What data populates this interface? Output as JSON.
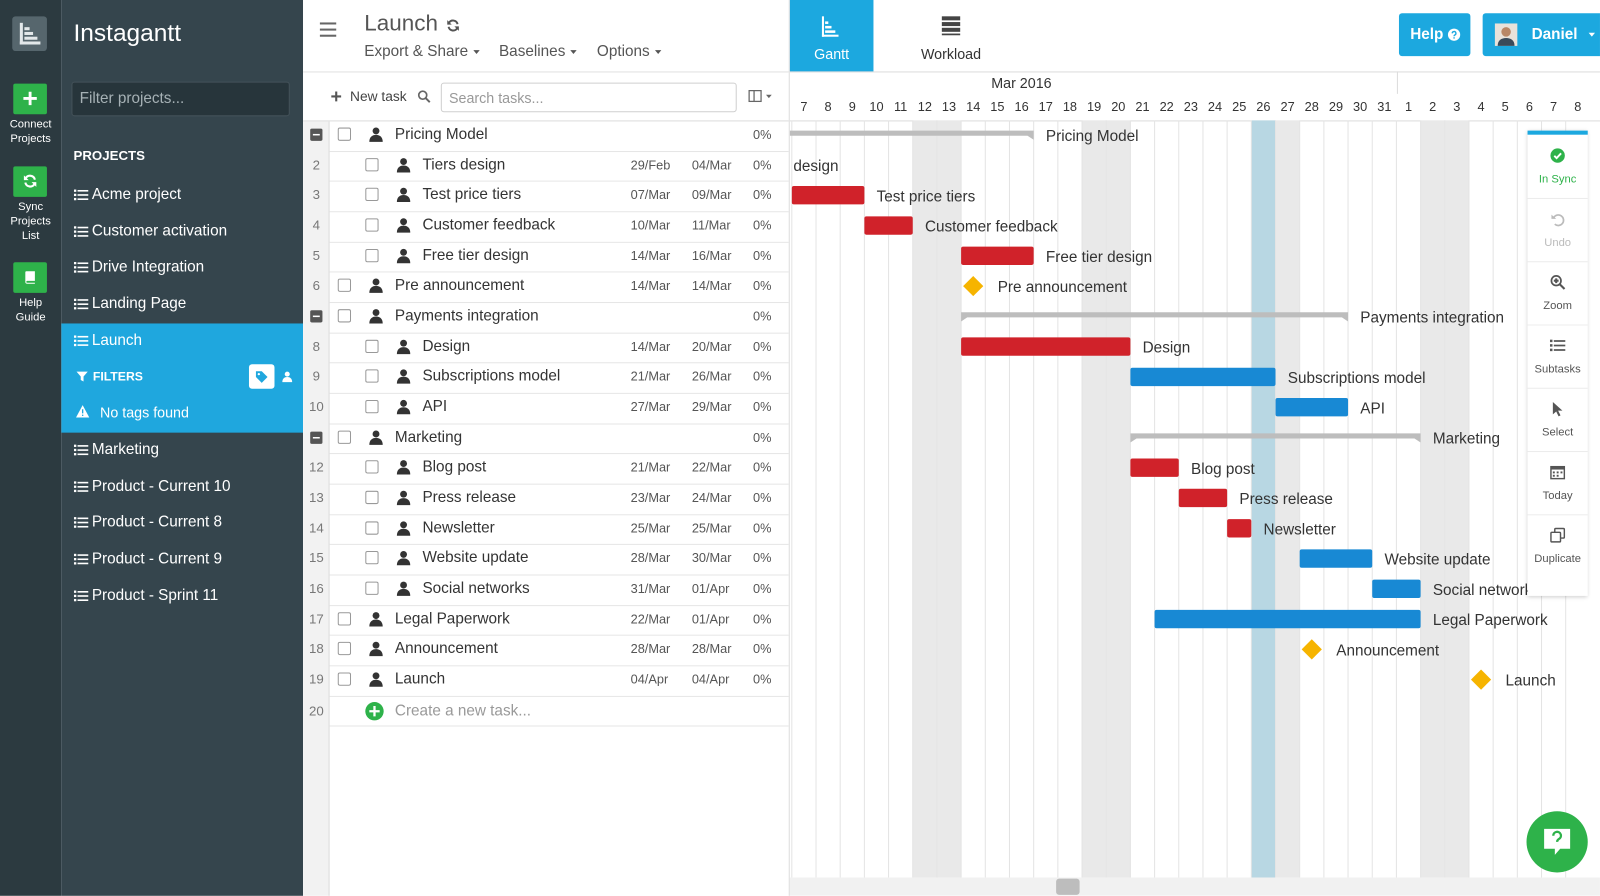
{
  "rail": {
    "items": [
      "Connect Projects",
      "Sync Projects List",
      "Help Guide"
    ]
  },
  "sidebar": {
    "app_name": "Instagantt",
    "filter_placeholder": "Filter projects...",
    "section_title": "PROJECTS",
    "projects": [
      "Acme project",
      "Customer activation",
      "Drive Integration",
      "Landing Page",
      "Launch",
      "Marketing",
      "Product - Current 10",
      "Product - Current 8",
      "Product - Current 9",
      "Product - Sprint 11"
    ],
    "filters_label": "FILTERS",
    "no_tags": "No tags found"
  },
  "header": {
    "project_title": "Launch",
    "menus": [
      "Export & Share",
      "Baselines",
      "Options"
    ]
  },
  "toolbar": {
    "new_task": "New task",
    "search_placeholder": "Search tasks..."
  },
  "views": {
    "tabs": [
      "Gantt",
      "Workload"
    ],
    "help": "Help",
    "user": "Daniel"
  },
  "timeline": {
    "months": [
      "Mar 2016"
    ],
    "days": [
      7,
      8,
      9,
      10,
      11,
      12,
      13,
      14,
      15,
      16,
      17,
      18,
      19,
      20,
      21,
      22,
      23,
      24,
      25,
      26,
      27,
      28,
      29,
      30,
      31,
      1,
      2,
      3,
      4,
      5,
      6,
      7,
      8
    ]
  },
  "tasks": {
    "rows": [
      {
        "name": "Pricing Model",
        "progress": "0%",
        "type": "group",
        "color": "#bdbdbd",
        "subtasks": [
          {
            "num": 2,
            "name": "Tiers design",
            "start": "29/Feb",
            "end": "04/Mar",
            "progress": "0%",
            "type": "task",
            "color": "#d0222a"
          },
          {
            "num": 3,
            "name": "Test price tiers",
            "start": "07/Mar",
            "end": "09/Mar",
            "progress": "0%",
            "type": "task",
            "color": "#d0222a"
          },
          {
            "num": 4,
            "name": "Customer feedback",
            "start": "10/Mar",
            "end": "11/Mar",
            "progress": "0%",
            "type": "task",
            "color": "#d0222a"
          },
          {
            "num": 5,
            "name": "Free tier design",
            "start": "14/Mar",
            "end": "16/Mar",
            "progress": "0%",
            "type": "task",
            "color": "#d0222a"
          }
        ]
      },
      {
        "num": 6,
        "name": "Pre announcement",
        "start": "14/Mar",
        "end": "14/Mar",
        "progress": "0%",
        "type": "milestone",
        "color": "#f6b400"
      },
      {
        "name": "Payments integration",
        "progress": "0%",
        "type": "group",
        "color": "#bdbdbd",
        "subtasks": [
          {
            "num": 8,
            "name": "Design",
            "start": "14/Mar",
            "end": "20/Mar",
            "progress": "0%",
            "type": "task",
            "color": "#d0222a"
          },
          {
            "num": 9,
            "name": "Subscriptions model",
            "start": "21/Mar",
            "end": "26/Mar",
            "progress": "0%",
            "type": "task",
            "color": "#1889d4"
          },
          {
            "num": 10,
            "name": "API",
            "start": "27/Mar",
            "end": "29/Mar",
            "progress": "0%",
            "type": "task",
            "color": "#1889d4"
          }
        ]
      },
      {
        "name": "Marketing",
        "progress": "0%",
        "type": "group",
        "color": "#bdbdbd",
        "subtasks": [
          {
            "num": 12,
            "name": "Blog post",
            "start": "21/Mar",
            "end": "22/Mar",
            "progress": "0%",
            "type": "task",
            "color": "#d0222a"
          },
          {
            "num": 13,
            "name": "Press release",
            "start": "23/Mar",
            "end": "24/Mar",
            "progress": "0%",
            "type": "task",
            "color": "#d0222a"
          },
          {
            "num": 14,
            "name": "Newsletter",
            "start": "25/Mar",
            "end": "25/Mar",
            "progress": "0%",
            "type": "task",
            "color": "#d0222a"
          },
          {
            "num": 15,
            "name": "Website update",
            "start": "28/Mar",
            "end": "30/Mar",
            "progress": "0%",
            "type": "task",
            "color": "#1889d4"
          },
          {
            "num": 16,
            "name": "Social networks",
            "start": "31/Mar",
            "end": "01/Apr",
            "progress": "0%",
            "type": "task",
            "color": "#1889d4"
          }
        ]
      },
      {
        "num": 17,
        "name": "Legal Paperwork",
        "start": "22/Mar",
        "end": "01/Apr",
        "progress": "0%",
        "type": "task",
        "color": "#1889d4"
      },
      {
        "num": 18,
        "name": "Announcement",
        "start": "28/Mar",
        "end": "28/Mar",
        "progress": "0%",
        "type": "milestone",
        "color": "#f6b400"
      },
      {
        "num": 19,
        "name": "Launch",
        "start": "04/Apr",
        "end": "04/Apr",
        "progress": "0%",
        "type": "milestone",
        "color": "#f6b400"
      }
    ],
    "new_task_num": 20,
    "new_task_placeholder": "Create a new task..."
  },
  "side_tools": [
    "In Sync",
    "Undo",
    "Zoom",
    "Subtasks",
    "Select",
    "Today",
    "Duplicate"
  ]
}
